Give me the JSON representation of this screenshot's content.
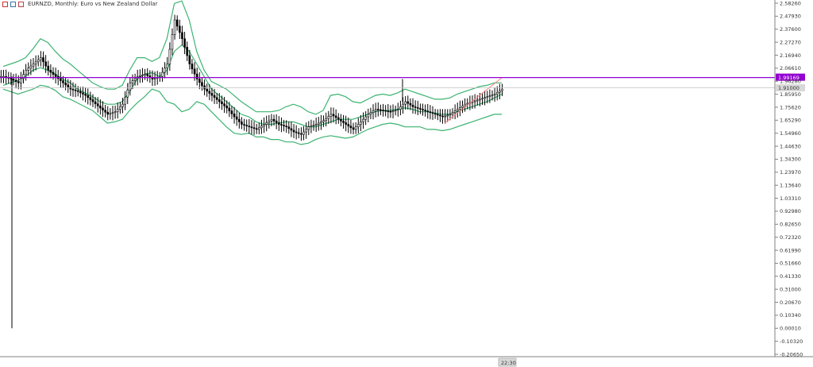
{
  "header": {
    "symbol": "EURNZD",
    "timeframe": "Monthly",
    "description": "Euro vs New Zealand Dollar",
    "title_text": "EURNZD, Monthly:  Euro vs New Zealand Dollar"
  },
  "price_axis": {
    "labels": [
      "2.58260",
      "2.47930",
      "2.37600",
      "2.27270",
      "2.16940",
      "2.06610",
      "1.96280",
      "1.85950",
      "1.75620",
      "1.65290",
      "1.54960",
      "1.44630",
      "1.34300",
      "1.23970",
      "1.13640",
      "1.03310",
      "0.92980",
      "0.82650",
      "0.72320",
      "0.61990",
      "0.51660",
      "0.41330",
      "0.31000",
      "0.20670",
      "0.10340",
      "0.00010",
      "-0.10320",
      "-0.20650"
    ],
    "current_price_label": "1.99169",
    "bid_label": "1.91000"
  },
  "time_axis": {
    "cursor_label": "22:30"
  },
  "colors": {
    "candle": "#000000",
    "bands": "#3cb371",
    "price_line": "#9400d3",
    "trend_line": "#ff8080",
    "grid": "#c8c8c8",
    "axis": "#808080"
  },
  "chart_data": {
    "type": "candlestick",
    "symbol": "EURNZD",
    "timeframe": "Monthly",
    "indicator": "Bollinger Bands",
    "ylim": [
      -0.2065,
      2.5826
    ],
    "current_price": 1.99169,
    "bid_line": 1.91,
    "bands_middle": [
      1.93,
      1.95,
      1.97,
      2.0,
      2.05,
      2.07,
      2.05,
      2.02,
      1.98,
      1.95,
      1.9,
      1.87,
      1.84,
      1.8,
      1.78,
      1.78,
      1.8,
      1.88,
      1.98,
      2.02,
      2.03,
      2.0,
      2.05,
      2.2,
      2.25,
      2.2,
      2.1,
      2.0,
      1.9,
      1.85,
      1.8,
      1.75,
      1.7,
      1.68,
      1.64,
      1.62,
      1.62,
      1.63,
      1.64,
      1.64,
      1.62,
      1.6,
      1.6,
      1.62,
      1.64,
      1.66,
      1.66,
      1.66,
      1.68,
      1.7,
      1.72,
      1.73,
      1.73,
      1.74,
      1.75,
      1.74,
      1.72,
      1.72,
      1.71,
      1.7,
      1.7,
      1.72,
      1.74,
      1.76,
      1.78,
      1.8,
      1.83,
      1.86
    ],
    "bands_upper": [
      2.08,
      2.1,
      2.12,
      2.15,
      2.22,
      2.3,
      2.27,
      2.2,
      2.14,
      2.1,
      2.05,
      2.0,
      1.95,
      1.92,
      1.9,
      1.9,
      1.93,
      2.05,
      2.15,
      2.15,
      2.12,
      2.15,
      2.3,
      2.58,
      2.6,
      2.45,
      2.2,
      2.05,
      1.96,
      1.93,
      1.9,
      1.85,
      1.8,
      1.76,
      1.72,
      1.72,
      1.72,
      1.73,
      1.76,
      1.78,
      1.76,
      1.72,
      1.7,
      1.73,
      1.85,
      1.86,
      1.84,
      1.8,
      1.79,
      1.82,
      1.85,
      1.86,
      1.85,
      1.87,
      1.9,
      1.88,
      1.86,
      1.84,
      1.82,
      1.82,
      1.83,
      1.86,
      1.88,
      1.9,
      1.92,
      1.93,
      1.95,
      1.95
    ],
    "bands_lower": [
      1.9,
      1.88,
      1.86,
      1.88,
      1.9,
      1.93,
      1.92,
      1.89,
      1.84,
      1.82,
      1.79,
      1.76,
      1.73,
      1.68,
      1.63,
      1.64,
      1.66,
      1.73,
      1.79,
      1.84,
      1.9,
      1.88,
      1.8,
      1.78,
      1.72,
      1.74,
      1.8,
      1.78,
      1.72,
      1.66,
      1.6,
      1.55,
      1.54,
      1.55,
      1.52,
      1.52,
      1.5,
      1.5,
      1.48,
      1.48,
      1.46,
      1.47,
      1.5,
      1.52,
      1.53,
      1.52,
      1.51,
      1.52,
      1.55,
      1.58,
      1.6,
      1.62,
      1.63,
      1.62,
      1.6,
      1.6,
      1.6,
      1.58,
      1.58,
      1.57,
      1.58,
      1.6,
      1.62,
      1.64,
      1.66,
      1.68,
      1.7,
      1.7
    ],
    "close": [
      2.0,
      1.98,
      1.95,
      2.05,
      2.1,
      2.15,
      2.05,
      2.0,
      1.95,
      1.9,
      1.88,
      1.85,
      1.8,
      1.75,
      1.7,
      1.72,
      1.78,
      1.95,
      2.0,
      2.02,
      1.98,
      2.0,
      2.1,
      2.45,
      2.3,
      2.1,
      1.98,
      1.9,
      1.85,
      1.8,
      1.75,
      1.68,
      1.62,
      1.6,
      1.58,
      1.62,
      1.66,
      1.62,
      1.6,
      1.56,
      1.54,
      1.6,
      1.62,
      1.65,
      1.7,
      1.66,
      1.62,
      1.58,
      1.64,
      1.7,
      1.74,
      1.73,
      1.72,
      1.74,
      1.8,
      1.76,
      1.74,
      1.72,
      1.7,
      1.68,
      1.7,
      1.74,
      1.78,
      1.8,
      1.82,
      1.84,
      1.86,
      1.9
    ]
  }
}
